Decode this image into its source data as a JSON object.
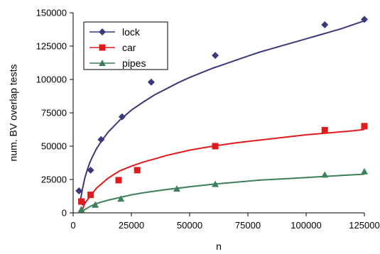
{
  "chart_data": {
    "type": "scatter",
    "title": "",
    "xlabel": "n",
    "ylabel": "num. BV overlap tests",
    "xlim": [
      0,
      125000
    ],
    "ylim": [
      0,
      150000
    ],
    "xticks": [
      0,
      25000,
      50000,
      75000,
      100000,
      125000
    ],
    "yticks": [
      0,
      25000,
      50000,
      75000,
      100000,
      125000,
      150000
    ],
    "grid": false,
    "legend_position": "top-left",
    "series": [
      {
        "name": "lock",
        "color": "#3a3a7a",
        "marker": "diamond",
        "x": [
          2500,
          4000,
          7500,
          12000,
          21000,
          33500,
          61000,
          108000,
          125000
        ],
        "y": [
          16500,
          8000,
          32000,
          55000,
          72000,
          98000,
          118000,
          141000,
          145000
        ],
        "trend_x": [
          3000,
          4000,
          5000,
          6000,
          7000,
          8000,
          10000,
          12000,
          15000,
          20000,
          25000,
          30000,
          35000,
          40000,
          45000,
          50000,
          55000,
          60000,
          65000,
          70000,
          75000,
          80000,
          85000,
          90000,
          95000,
          100000,
          105000,
          110000,
          115000,
          120000,
          125000
        ],
        "trend_y": [
          8000,
          18000,
          26000,
          32000,
          37000,
          41000,
          48000,
          53500,
          60500,
          69500,
          77000,
          83000,
          88500,
          93000,
          97500,
          101500,
          105000,
          108500,
          111500,
          114500,
          117500,
          120500,
          123000,
          125500,
          128000,
          130500,
          133000,
          135500,
          138000,
          141000,
          144000
        ]
      },
      {
        "name": "car",
        "color": "#e11b1b",
        "marker": "square",
        "x": [
          3500,
          7500,
          19500,
          27500,
          61000,
          108000,
          125000
        ],
        "y": [
          8500,
          13500,
          24500,
          32000,
          50000,
          62000,
          65000
        ],
        "trend_x": [
          3500,
          5000,
          7500,
          10000,
          15000,
          20000,
          25000,
          30000,
          35000,
          40000,
          45000,
          50000,
          60000,
          70000,
          80000,
          90000,
          100000,
          110000,
          120000,
          125000
        ],
        "trend_y": [
          500,
          7000,
          13000,
          18500,
          26000,
          31500,
          35000,
          38000,
          40500,
          43000,
          45000,
          47000,
          50000,
          52500,
          54500,
          56500,
          58500,
          60000,
          61500,
          62500
        ]
      },
      {
        "name": "pipes",
        "color": "#3c7f5a",
        "marker": "triangle",
        "x": [
          3500,
          9500,
          20500,
          44500,
          61000,
          108000,
          125000
        ],
        "y": [
          2500,
          6000,
          10500,
          18000,
          21500,
          28500,
          31000
        ],
        "trend_x": [
          3500,
          5000,
          7500,
          10000,
          15000,
          20000,
          25000,
          30000,
          40000,
          50000,
          60000,
          70000,
          80000,
          90000,
          100000,
          110000,
          120000,
          125000
        ],
        "trend_y": [
          500,
          2500,
          5000,
          7000,
          9500,
          11500,
          13500,
          15000,
          17500,
          19500,
          21500,
          23000,
          24500,
          25500,
          26500,
          27500,
          28500,
          29000
        ]
      }
    ]
  }
}
